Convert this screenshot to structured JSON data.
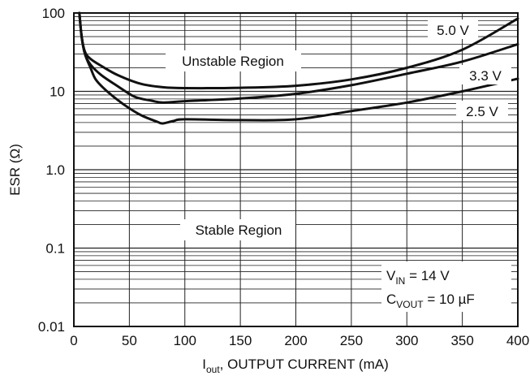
{
  "chart_data": {
    "type": "line",
    "x_scale": "linear",
    "y_scale": "log",
    "xlim": [
      0,
      400
    ],
    "ylim": [
      0.01,
      100
    ],
    "x_ticks": [
      "0",
      "50",
      "100",
      "150",
      "200",
      "250",
      "300",
      "350",
      "400"
    ],
    "y_ticks": [
      "0.01",
      "0.1",
      "1.0",
      "10",
      "100"
    ],
    "xlabel": {
      "main": "I",
      "sub": "out",
      "rest": ", OUTPUT CURRENT (mA)"
    },
    "ylabel": "ESR (Ω)",
    "grid": {
      "horizontal_log_minor": true,
      "vertical_major": true
    },
    "regions": [
      {
        "label": "Unstable Region"
      },
      {
        "label": "Stable Region"
      }
    ],
    "conditions": [
      {
        "main": "V",
        "sub": "IN",
        "rest": " = 14 V"
      },
      {
        "main": "C",
        "sub": "VOUT",
        "rest": " = 10 µF"
      }
    ],
    "series": [
      {
        "name": "5.0 V",
        "x": [
          5,
          7,
          10,
          15,
          25,
          40,
          60,
          80,
          100,
          150,
          200,
          250,
          300,
          350,
          400
        ],
        "y": [
          100,
          50,
          32,
          26,
          21,
          16,
          12.5,
          11.3,
          11,
          11.1,
          11.8,
          14.2,
          20,
          34,
          85
        ]
      },
      {
        "name": "3.3 V",
        "x": [
          5,
          7,
          10,
          15,
          25,
          40,
          55,
          70,
          80,
          100,
          150,
          200,
          250,
          300,
          350,
          400
        ],
        "y": [
          100,
          50,
          30,
          22,
          16,
          11.5,
          8.5,
          7.6,
          7.2,
          7.5,
          8.1,
          9.3,
          12,
          16.8,
          24,
          40
        ]
      },
      {
        "name": "2.5 V",
        "x": [
          5,
          7,
          10,
          15,
          20,
          30,
          45,
          60,
          75,
          80,
          90,
          100,
          150,
          200,
          250,
          300,
          350,
          400
        ],
        "y": [
          100,
          50,
          30,
          20,
          14,
          10,
          6.8,
          5,
          4.1,
          3.9,
          4.2,
          4.4,
          4.3,
          4.4,
          5.6,
          7.2,
          10,
          14.5
        ]
      }
    ],
    "colors": {
      "line": "#111111",
      "grid": "#222222",
      "background": "#ffffff"
    }
  }
}
